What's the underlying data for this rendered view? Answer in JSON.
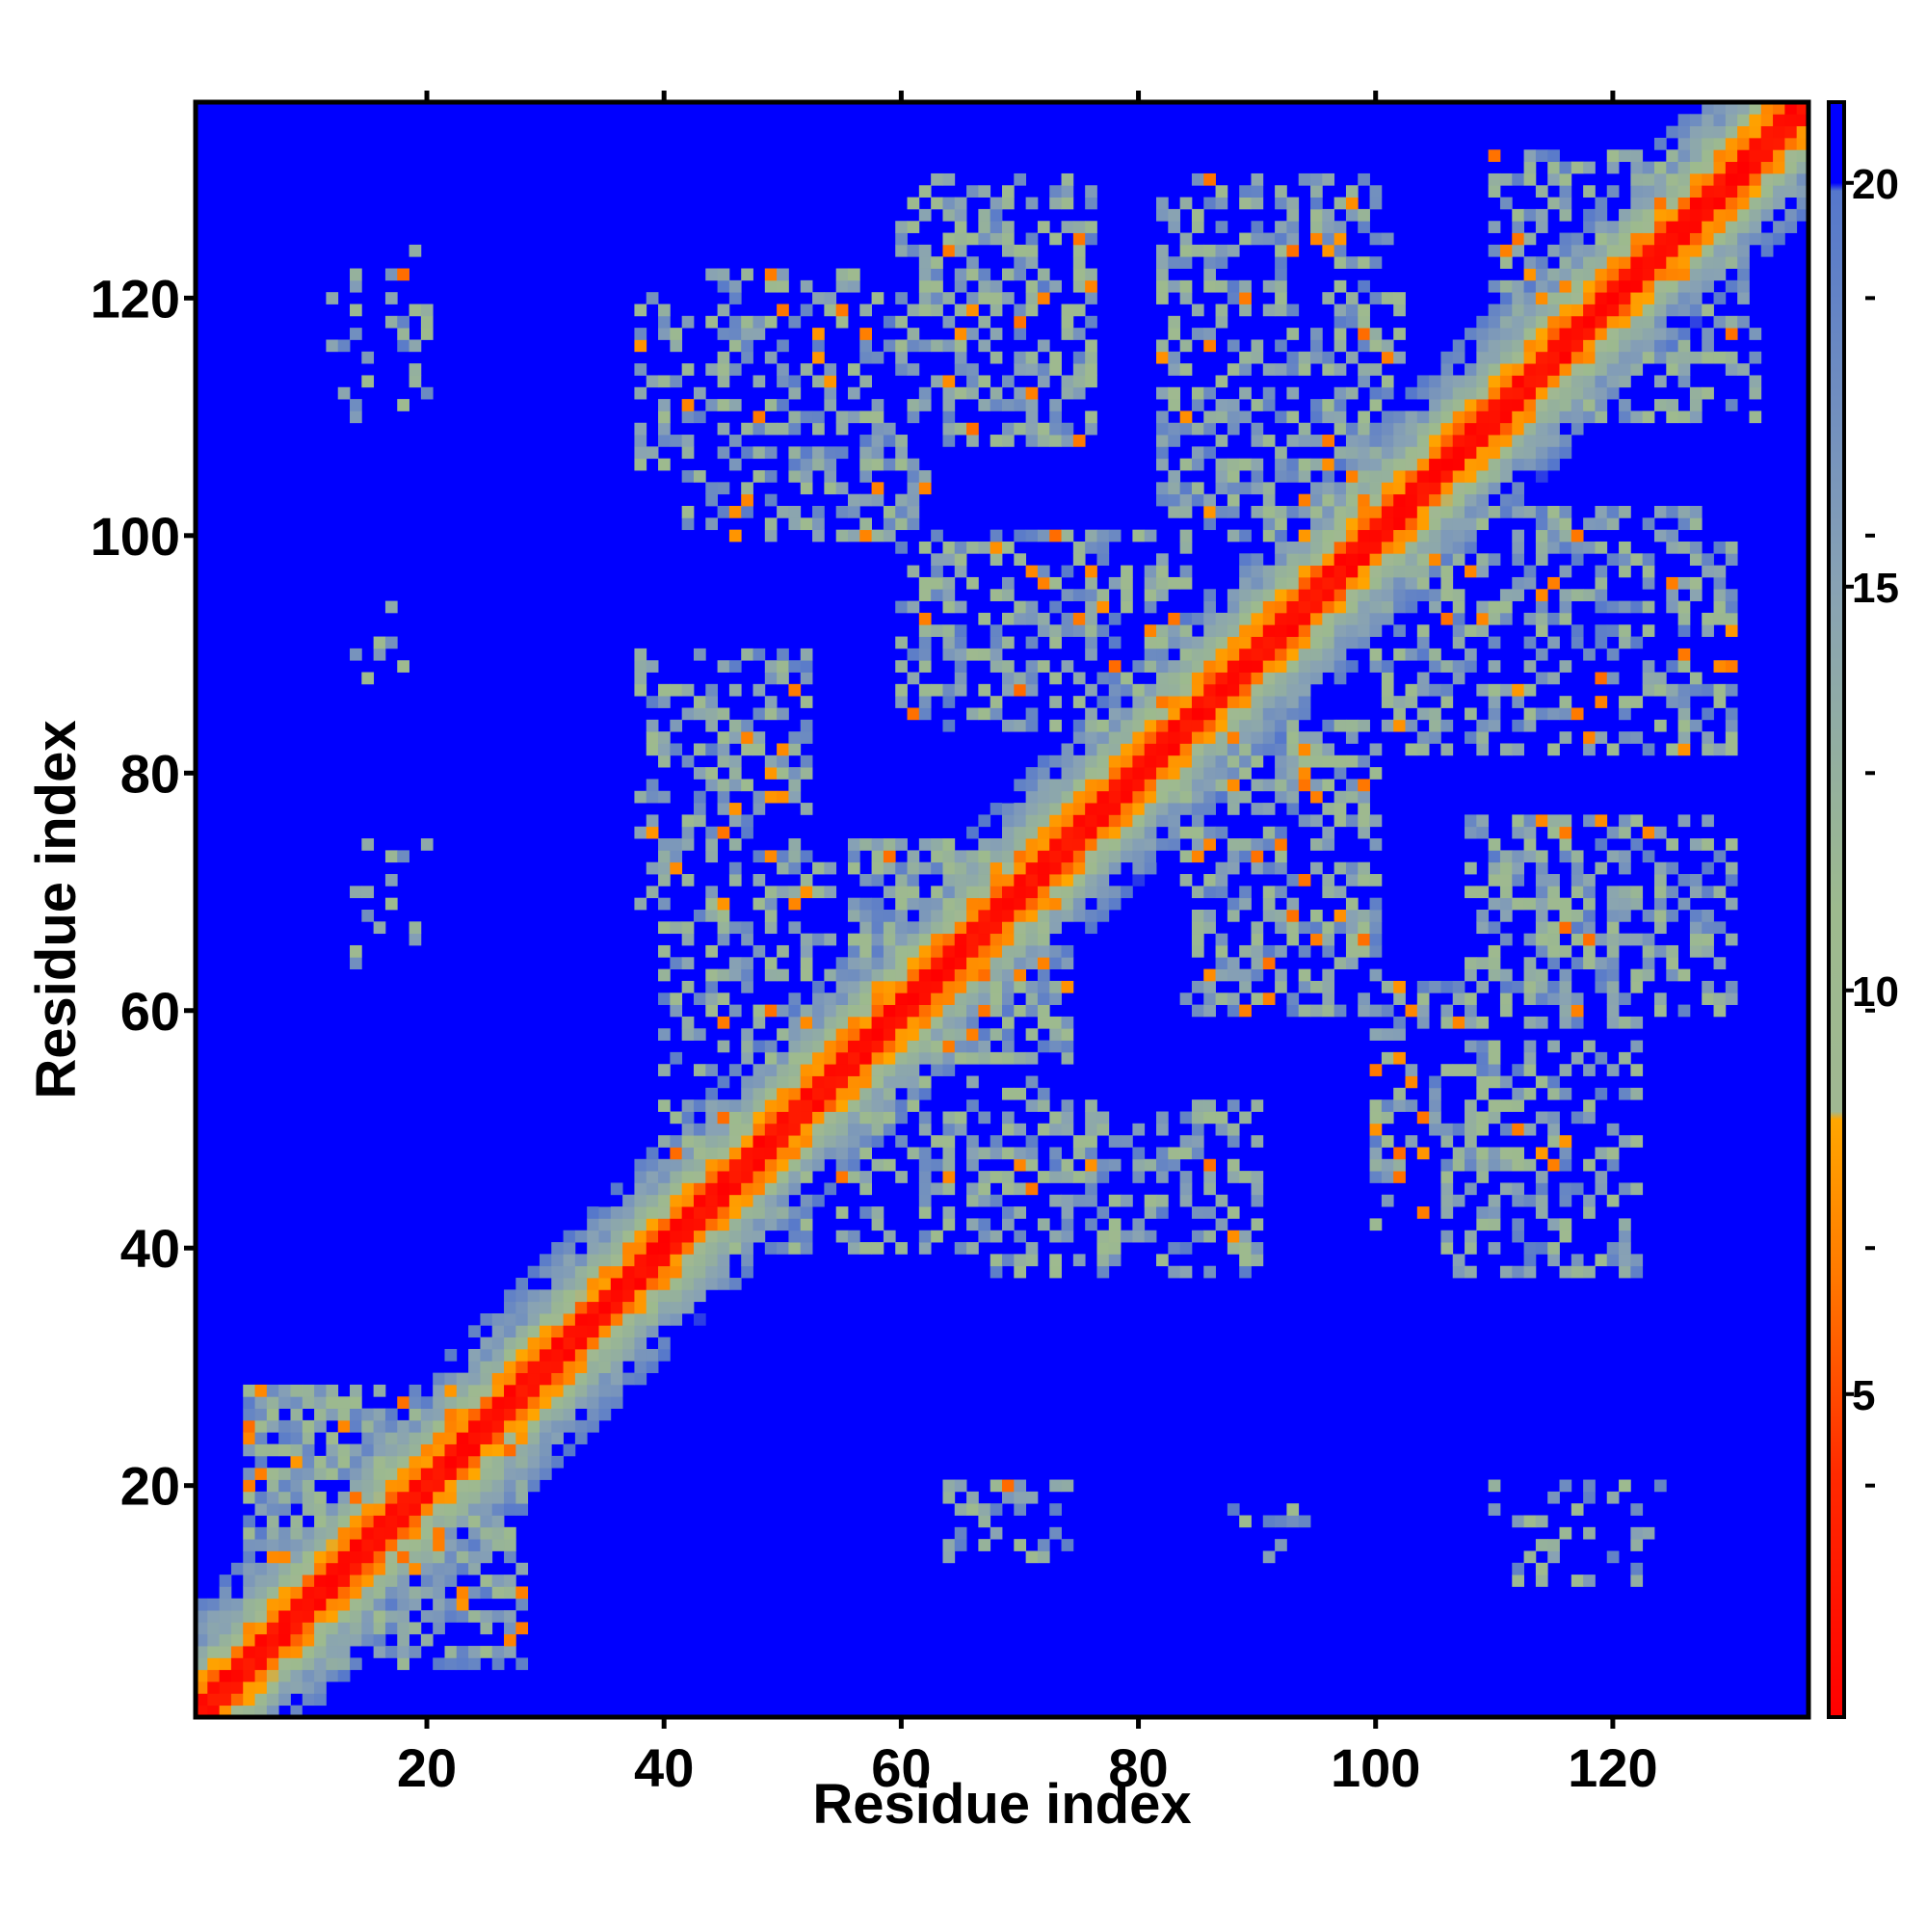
{
  "chart_data": {
    "type": "heatmap",
    "title": "",
    "xlabel": "Residue index",
    "ylabel": "Residue index",
    "xlim": [
      1,
      136
    ],
    "ylim": [
      1,
      136
    ],
    "x_ticks": [
      20,
      40,
      60,
      80,
      100,
      120
    ],
    "y_ticks": [
      20,
      40,
      60,
      80,
      100,
      120
    ],
    "colorbar": {
      "ticks": [
        5,
        10,
        15,
        20
      ],
      "range": [
        1,
        21
      ],
      "stops": [
        {
          "value": 1,
          "color": "#ff0000"
        },
        {
          "value": 4,
          "color": "#ff2a00"
        },
        {
          "value": 6.5,
          "color": "#ff7a00"
        },
        {
          "value": 8.4,
          "color": "#ffa600"
        },
        {
          "value": 8.5,
          "color": "#a0b892"
        },
        {
          "value": 11,
          "color": "#9dba8e"
        },
        {
          "value": 15,
          "color": "#88a2b4"
        },
        {
          "value": 19.9,
          "color": "#5577cc"
        },
        {
          "value": 20,
          "color": "#0000ff"
        },
        {
          "value": 21,
          "color": "#0000ff"
        }
      ]
    },
    "diagonal": {
      "from": 1,
      "to": 136
    },
    "background_value": 21,
    "contact_regions": [
      {
        "x": [
          5,
          28
        ],
        "y": [
          5,
          28
        ],
        "intensity": 0.7
      },
      {
        "x": [
          40,
          52
        ],
        "y": [
          40,
          52
        ],
        "intensity": 0.7
      },
      {
        "x": [
          56,
          74
        ],
        "y": [
          56,
          74
        ],
        "intensity": 0.7
      },
      {
        "x": [
          68,
          90
        ],
        "y": [
          38,
          52
        ],
        "intensity": 0.45
      },
      {
        "x": [
          40,
          54
        ],
        "y": [
          55,
          72
        ],
        "intensity": 0.45
      },
      {
        "x": [
          60,
          84
        ],
        "y": [
          84,
          100
        ],
        "intensity": 0.45
      },
      {
        "x": [
          84,
          100
        ],
        "y": [
          62,
          82
        ],
        "intensity": 0.5
      },
      {
        "x": [
          38,
          60
        ],
        "y": [
          106,
          122
        ],
        "intensity": 0.45
      },
      {
        "x": [
          60,
          76
        ],
        "y": [
          108,
          130
        ],
        "intensity": 0.5
      },
      {
        "x": [
          82,
          100
        ],
        "y": [
          100,
          130
        ],
        "intensity": 0.5
      },
      {
        "x": [
          104,
          128
        ],
        "y": [
          84,
          102
        ],
        "intensity": 0.5
      },
      {
        "x": [
          110,
          130
        ],
        "y": [
          64,
          76
        ],
        "intensity": 0.45
      },
      {
        "x": [
          100,
          120
        ],
        "y": [
          42,
          62
        ],
        "intensity": 0.4
      },
      {
        "x": [
          110,
          128
        ],
        "y": [
          116,
          132
        ],
        "intensity": 0.4
      },
      {
        "x": [
          14,
          20
        ],
        "y": [
          110,
          124
        ],
        "intensity": 0.25
      },
      {
        "x": [
          14,
          20
        ],
        "y": [
          64,
          74
        ],
        "intensity": 0.25
      },
      {
        "x": [
          64,
          72
        ],
        "y": [
          14,
          20
        ],
        "intensity": 0.25
      },
      {
        "x": [
          112,
          122
        ],
        "y": [
          12,
          20
        ],
        "intensity": 0.25
      },
      {
        "x": [
          88,
          94
        ],
        "y": [
          14,
          18
        ],
        "intensity": 0.2
      }
    ]
  }
}
